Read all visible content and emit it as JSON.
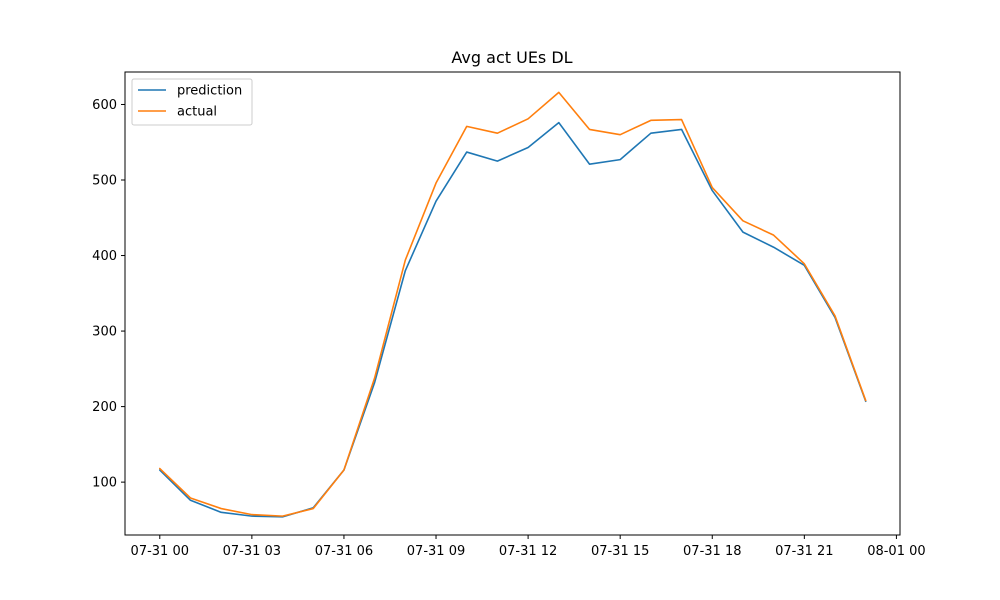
{
  "chart_data": {
    "type": "line",
    "title": "Avg act UEs DL",
    "xlabel": "",
    "ylabel": "",
    "x": [
      "07-31 00:00",
      "07-31 01:00",
      "07-31 02:00",
      "07-31 03:00",
      "07-31 04:00",
      "07-31 05:00",
      "07-31 06:00",
      "07-31 07:00",
      "07-31 08:00",
      "07-31 09:00",
      "07-31 10:00",
      "07-31 11:00",
      "07-31 12:00",
      "07-31 13:00",
      "07-31 14:00",
      "07-31 15:00",
      "07-31 16:00",
      "07-31 17:00",
      "07-31 18:00",
      "07-31 19:00",
      "07-31 20:00",
      "07-31 21:00",
      "07-31 22:00",
      "07-31 23:00"
    ],
    "series": [
      {
        "name": "prediction",
        "color": "#1f77b4",
        "values": [
          116,
          76,
          60,
          55,
          54,
          66,
          116,
          232,
          380,
          472,
          537,
          525,
          543,
          576,
          521,
          527,
          562,
          567,
          486,
          431,
          411,
          387,
          318,
          207
        ]
      },
      {
        "name": "actual",
        "color": "#ff7f0e",
        "values": [
          118,
          79,
          65,
          57,
          55,
          65,
          116,
          238,
          394,
          496,
          571,
          562,
          581,
          616,
          567,
          560,
          579,
          580,
          490,
          446,
          427,
          389,
          320,
          208
        ]
      }
    ],
    "xlim": [
      "07-30 22:52",
      "08-01 00:07"
    ],
    "ylim": [
      30,
      643
    ],
    "xticks": [
      {
        "value": "07-31 00:00",
        "label": "07-31 00"
      },
      {
        "value": "07-31 03:00",
        "label": "07-31 03"
      },
      {
        "value": "07-31 06:00",
        "label": "07-31 06"
      },
      {
        "value": "07-31 09:00",
        "label": "07-31 09"
      },
      {
        "value": "07-31 12:00",
        "label": "07-31 12"
      },
      {
        "value": "07-31 15:00",
        "label": "07-31 15"
      },
      {
        "value": "07-31 18:00",
        "label": "07-31 18"
      },
      {
        "value": "07-31 21:00",
        "label": "07-31 21"
      },
      {
        "value": "08-01 00:00",
        "label": "08-01 00"
      }
    ],
    "yticks": [
      100,
      200,
      300,
      400,
      500,
      600
    ],
    "grid": false,
    "legend": "upper-left"
  }
}
